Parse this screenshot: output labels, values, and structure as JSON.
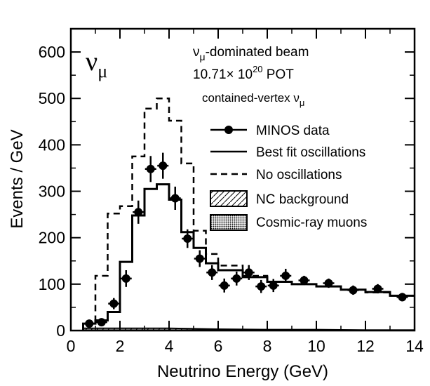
{
  "chart_data": {
    "type": "line",
    "title": "",
    "xlabel": "Neutrino Energy (GeV)",
    "ylabel": "Events / GeV",
    "xlim": [
      0,
      14
    ],
    "ylim": [
      0,
      650
    ],
    "x_ticks": [
      "0",
      "2",
      "4",
      "6",
      "8",
      "10",
      "12",
      "14"
    ],
    "y_ticks": [
      "0",
      "100",
      "200",
      "300",
      "400",
      "500",
      "600"
    ],
    "corner_label": "νμ",
    "annotations": [
      "νμ-dominated beam",
      "10.71× 10²⁰ POT",
      "contained-vertex νμ"
    ],
    "legend_position": "top-right",
    "legend": [
      {
        "label": "MINOS data",
        "style": "points"
      },
      {
        "label": "Best fit oscillations",
        "style": "solid"
      },
      {
        "label": "No oscillations",
        "style": "dashed"
      },
      {
        "label": "NC background",
        "style": "hatched"
      },
      {
        "label": "Cosmic-ray muons",
        "style": "dotted-fill"
      }
    ],
    "series": [
      {
        "name": "No oscillations",
        "style": "dashed-step",
        "edges": [
          0.5,
          1.0,
          1.5,
          2.0,
          2.5,
          3.0,
          3.5,
          4.0,
          4.5,
          5.0,
          5.5,
          6.0,
          7.0,
          8.0,
          9.0,
          10.0,
          11.0,
          12.0,
          13.0,
          14.0
        ],
        "values": [
          15,
          118,
          252,
          268,
          375,
          478,
          500,
          452,
          360,
          215,
          165,
          140,
          118,
          105,
          100,
          95,
          88,
          82,
          75
        ]
      },
      {
        "name": "Best fit oscillations",
        "style": "solid-step",
        "edges": [
          0.5,
          1.0,
          1.5,
          2.0,
          2.5,
          3.0,
          3.5,
          4.0,
          4.5,
          5.0,
          5.5,
          6.0,
          7.0,
          8.0,
          9.0,
          10.0,
          11.0,
          12.0,
          13.0,
          14.0
        ],
        "values": [
          15,
          22,
          40,
          148,
          248,
          305,
          315,
          282,
          212,
          178,
          145,
          130,
          115,
          105,
          100,
          95,
          88,
          83,
          75
        ]
      },
      {
        "name": "MINOS data",
        "style": "points",
        "x": [
          0.75,
          1.25,
          1.75,
          2.25,
          2.75,
          3.25,
          3.75,
          4.25,
          4.75,
          5.25,
          5.75,
          6.25,
          6.75,
          7.25,
          7.75,
          8.25,
          8.75,
          9.5,
          10.5,
          11.5,
          12.5,
          13.5
        ],
        "y": [
          15,
          18,
          58,
          112,
          255,
          348,
          355,
          285,
          198,
          155,
          125,
          97,
          112,
          125,
          95,
          97,
          118,
          108,
          102,
          87,
          90,
          72
        ],
        "err": [
          6,
          6,
          12,
          18,
          25,
          28,
          28,
          25,
          20,
          18,
          16,
          15,
          15,
          16,
          14,
          14,
          15,
          10,
          10,
          10,
          10,
          9
        ]
      },
      {
        "name": "NC background",
        "style": "hatched-area",
        "x": [
          0.5,
          2,
          4,
          6,
          8,
          10,
          12,
          14
        ],
        "y": [
          5,
          5,
          5,
          3,
          2,
          2,
          1,
          1
        ]
      },
      {
        "name": "Cosmic-ray muons",
        "style": "dotted-area",
        "x": [
          0.5,
          14
        ],
        "y": [
          1,
          1
        ]
      }
    ]
  }
}
